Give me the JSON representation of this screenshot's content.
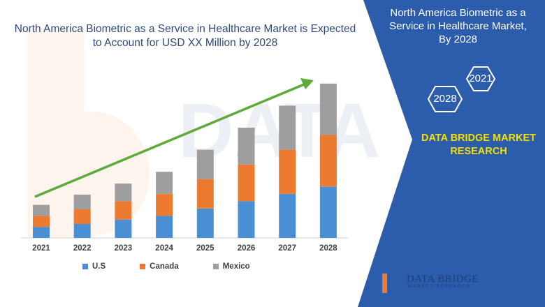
{
  "chart_data": {
    "type": "bar",
    "stacked": true,
    "title": "North America Biometric as a Service in Healthcare Market is Expected to Account for USD XX Million by 2028",
    "categories": [
      "2021",
      "2022",
      "2023",
      "2024",
      "2025",
      "2026",
      "2027",
      "2028"
    ],
    "series": [
      {
        "name": "U.S",
        "color": "#4a8fd4",
        "values": [
          15,
          19,
          25,
          30,
          40,
          50,
          60,
          70
        ]
      },
      {
        "name": "Canada",
        "color": "#ed7a31",
        "values": [
          15,
          20,
          25,
          30,
          40,
          50,
          60,
          70
        ]
      },
      {
        "name": "Mexico",
        "color": "#9e9e9e",
        "values": [
          15,
          20,
          24,
          30,
          40,
          50,
          60,
          70
        ]
      }
    ],
    "ylim": [
      0,
      225
    ],
    "grid": false,
    "legend_position": "bottom",
    "trend_arrow": true
  },
  "panel": {
    "title": "North America Biometric as a Service in Healthcare Market, By 2028",
    "hex_start": "2021",
    "hex_end": "2028",
    "brand": "DATA BRIDGE MARKET RESEARCH"
  },
  "logo": {
    "name": "DATA BRIDGE",
    "tagline": "MARKET RESEARCH"
  },
  "colors": {
    "panel_blue": "#2c5dad",
    "brand_yellow": "#f3e000",
    "arrow_green": "#5cab3b",
    "title_blue": "#2f4a7c"
  }
}
